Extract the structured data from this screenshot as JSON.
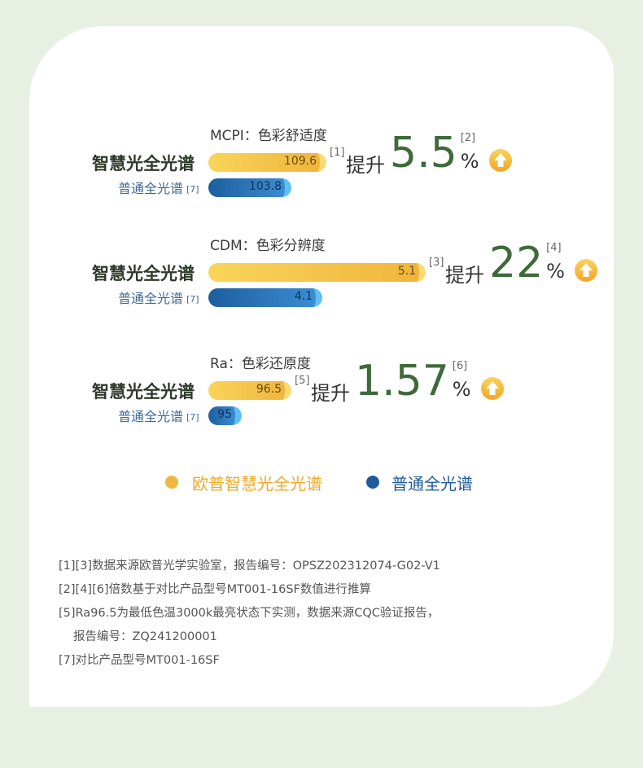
{
  "chart_data": {
    "type": "bar",
    "groups": [
      {
        "metric": "MCPI：色彩舒适度",
        "smart_label": "智慧光全光谱",
        "normal_label": "普通全光谱",
        "normal_ref": "[7]",
        "smart_value": 109.6,
        "normal_value": 103.8,
        "smart_ref": "[1]",
        "increase_prefix": "提升",
        "increase_value": "5.5",
        "increase_unit": "%",
        "increase_ref": "[2]"
      },
      {
        "metric": "CDM：色彩分辨度",
        "smart_label": "智慧光全光谱",
        "normal_label": "普通全光谱",
        "normal_ref": "[7]",
        "smart_value": 5.1,
        "normal_value": 4.1,
        "smart_ref": "[3]",
        "increase_prefix": "提升",
        "increase_value": "22",
        "increase_unit": "%",
        "increase_ref": "[4]"
      },
      {
        "metric": "Ra：色彩还原度",
        "smart_label": "智慧光全光谱",
        "normal_label": "普通全光谱",
        "normal_ref": "[7]",
        "smart_value": 96.5,
        "normal_value": 95,
        "smart_ref": "[5]",
        "increase_prefix": "提升",
        "increase_value": "1.57",
        "increase_unit": "%",
        "increase_ref": "[6]"
      }
    ],
    "legend": [
      {
        "name": "欧普智慧光全光谱",
        "color": "#f2b63e"
      },
      {
        "name": "普通全光谱",
        "color": "#1f5a9a"
      }
    ]
  },
  "icons": {
    "increase": "up-arrow-icon"
  },
  "notes": [
    "[1][3]数据来源欧普光学实验室，报告编号：OPSZ202312074-G02-V1",
    "[2][4][6]倍数基于对比产品型号MT001-16SF数值进行推算",
    "[5]Ra96.5为最低色温3000k最亮状态下实测，数据来源CQC验证报告，",
    "报告编号：ZQ241200001",
    "[7]对比产品型号MT001-16SF"
  ]
}
